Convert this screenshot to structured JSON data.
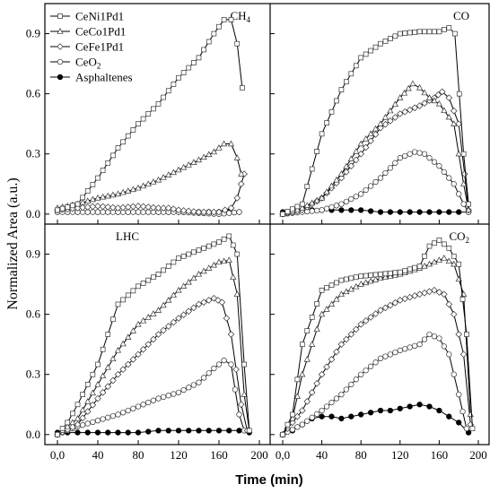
{
  "chart_data": {
    "type": "line",
    "ylabel": "Normalized Area (a.u.)",
    "xlabel": "Time (min)",
    "xlim": [
      0,
      200
    ],
    "ylim": [
      -0.05,
      1.05
    ],
    "xticks": [
      "0,0",
      "40",
      "80",
      "120",
      "160",
      "200"
    ],
    "yticks": [
      "0.0",
      "0.3",
      "0.6",
      "0.9"
    ],
    "legend": {
      "placement": "top-left of top-left panel",
      "entries": [
        {
          "key": "ni",
          "label": "CeNi1Pd1",
          "marker": "square"
        },
        {
          "key": "co",
          "label": "CeCo1Pd1",
          "marker": "triangle"
        },
        {
          "key": "fe",
          "label": "CeFe1Pd1",
          "marker": "diamond"
        },
        {
          "key": "ce",
          "label": "CeO",
          "sub": "2",
          "marker": "circle"
        },
        {
          "key": "asph",
          "label": "Asphaltenes",
          "marker": "filled-circle"
        }
      ]
    },
    "panels": [
      {
        "id": "ch4",
        "label": "CH",
        "label_sub": "4",
        "series": {
          "ni": [
            [
              0,
              0.02
            ],
            [
              20,
              0.05
            ],
            [
              40,
              0.18
            ],
            [
              60,
              0.33
            ],
            [
              80,
              0.45
            ],
            [
              100,
              0.55
            ],
            [
              120,
              0.68
            ],
            [
              140,
              0.78
            ],
            [
              155,
              0.9
            ],
            [
              165,
              0.97
            ],
            [
              172,
              0.97
            ],
            [
              178,
              0.85
            ],
            [
              183,
              0.63
            ]
          ],
          "co": [
            [
              0,
              0.03
            ],
            [
              20,
              0.05
            ],
            [
              40,
              0.08
            ],
            [
              60,
              0.1
            ],
            [
              80,
              0.13
            ],
            [
              100,
              0.17
            ],
            [
              120,
              0.22
            ],
            [
              140,
              0.27
            ],
            [
              155,
              0.31
            ],
            [
              165,
              0.35
            ],
            [
              172,
              0.35
            ],
            [
              178,
              0.28
            ],
            [
              182,
              0.2
            ]
          ],
          "fe": [
            [
              0,
              0.02
            ],
            [
              20,
              0.03
            ],
            [
              40,
              0.04
            ],
            [
              60,
              0.03
            ],
            [
              80,
              0.04
            ],
            [
              100,
              0.03
            ],
            [
              110,
              0.03
            ],
            [
              120,
              0.02
            ],
            [
              140,
              0.01
            ],
            [
              160,
              0.01
            ],
            [
              172,
              0.03
            ],
            [
              178,
              0.08
            ],
            [
              182,
              0.15
            ],
            [
              185,
              0.2
            ]
          ],
          "ce": [
            [
              0,
              0.01
            ],
            [
              40,
              0.01
            ],
            [
              80,
              0.01
            ],
            [
              120,
              0.01
            ],
            [
              160,
              0.0
            ],
            [
              180,
              0.01
            ]
          ],
          "asph": [
            [
              0,
              0.01
            ],
            [
              20,
              0.01
            ],
            [
              40,
              0.01
            ],
            [
              60,
              0.01
            ],
            [
              80,
              0.01
            ],
            [
              100,
              0.01
            ],
            [
              120,
              0.01
            ],
            [
              140,
              0.01
            ],
            [
              160,
              0.01
            ],
            [
              180,
              0.01
            ]
          ]
        }
      },
      {
        "id": "co",
        "label": "CO",
        "label_sub": "",
        "series": {
          "ni": [
            [
              0,
              0.0
            ],
            [
              20,
              0.05
            ],
            [
              40,
              0.4
            ],
            [
              60,
              0.62
            ],
            [
              80,
              0.78
            ],
            [
              100,
              0.85
            ],
            [
              120,
              0.9
            ],
            [
              140,
              0.91
            ],
            [
              160,
              0.91
            ],
            [
              170,
              0.93
            ],
            [
              176,
              0.9
            ],
            [
              185,
              0.3
            ],
            [
              190,
              0.05
            ]
          ],
          "co": [
            [
              0,
              0.0
            ],
            [
              20,
              0.03
            ],
            [
              40,
              0.08
            ],
            [
              60,
              0.2
            ],
            [
              80,
              0.35
            ],
            [
              100,
              0.45
            ],
            [
              120,
              0.58
            ],
            [
              133,
              0.65
            ],
            [
              140,
              0.63
            ],
            [
              150,
              0.58
            ],
            [
              160,
              0.55
            ],
            [
              175,
              0.45
            ],
            [
              185,
              0.15
            ],
            [
              190,
              0.02
            ]
          ],
          "fe": [
            [
              0,
              0.0
            ],
            [
              20,
              0.02
            ],
            [
              40,
              0.08
            ],
            [
              60,
              0.18
            ],
            [
              80,
              0.3
            ],
            [
              100,
              0.43
            ],
            [
              120,
              0.5
            ],
            [
              140,
              0.54
            ],
            [
              155,
              0.58
            ],
            [
              163,
              0.61
            ],
            [
              170,
              0.58
            ],
            [
              180,
              0.45
            ],
            [
              186,
              0.2
            ],
            [
              190,
              0.02
            ]
          ],
          "ce": [
            [
              0,
              0.0
            ],
            [
              40,
              0.02
            ],
            [
              60,
              0.05
            ],
            [
              80,
              0.1
            ],
            [
              100,
              0.18
            ],
            [
              120,
              0.28
            ],
            [
              135,
              0.31
            ],
            [
              145,
              0.3
            ],
            [
              160,
              0.24
            ],
            [
              175,
              0.15
            ],
            [
              185,
              0.05
            ],
            [
              190,
              0.01
            ]
          ],
          "asph": [
            [
              0,
              0.01
            ],
            [
              10,
              0.02
            ],
            [
              20,
              0.02
            ],
            [
              40,
              0.02
            ],
            [
              60,
              0.02
            ],
            [
              80,
              0.02
            ],
            [
              100,
              0.01
            ],
            [
              120,
              0.01
            ],
            [
              140,
              0.01
            ],
            [
              160,
              0.01
            ],
            [
              180,
              0.01
            ],
            [
              190,
              0.01
            ]
          ]
        }
      },
      {
        "id": "lhc",
        "label": "LHC",
        "label_sub": "",
        "series": {
          "ni": [
            [
              0,
              0.0
            ],
            [
              10,
              0.06
            ],
            [
              20,
              0.15
            ],
            [
              40,
              0.35
            ],
            [
              60,
              0.65
            ],
            [
              80,
              0.74
            ],
            [
              100,
              0.8
            ],
            [
              120,
              0.88
            ],
            [
              140,
              0.92
            ],
            [
              160,
              0.96
            ],
            [
              170,
              0.99
            ],
            [
              178,
              0.9
            ],
            [
              185,
              0.35
            ],
            [
              190,
              0.02
            ]
          ],
          "co": [
            [
              0,
              0.0
            ],
            [
              20,
              0.08
            ],
            [
              40,
              0.25
            ],
            [
              60,
              0.42
            ],
            [
              80,
              0.55
            ],
            [
              100,
              0.62
            ],
            [
              120,
              0.72
            ],
            [
              140,
              0.8
            ],
            [
              160,
              0.86
            ],
            [
              170,
              0.87
            ],
            [
              178,
              0.7
            ],
            [
              185,
              0.2
            ],
            [
              190,
              0.02
            ]
          ],
          "fe": [
            [
              0,
              0.0
            ],
            [
              20,
              0.05
            ],
            [
              40,
              0.18
            ],
            [
              60,
              0.3
            ],
            [
              80,
              0.4
            ],
            [
              100,
              0.5
            ],
            [
              120,
              0.58
            ],
            [
              140,
              0.65
            ],
            [
              155,
              0.68
            ],
            [
              163,
              0.66
            ],
            [
              172,
              0.5
            ],
            [
              182,
              0.15
            ],
            [
              188,
              0.02
            ]
          ],
          "ce": [
            [
              0,
              0.0
            ],
            [
              20,
              0.04
            ],
            [
              40,
              0.07
            ],
            [
              60,
              0.1
            ],
            [
              80,
              0.14
            ],
            [
              100,
              0.18
            ],
            [
              120,
              0.21
            ],
            [
              140,
              0.26
            ],
            [
              155,
              0.33
            ],
            [
              165,
              0.37
            ],
            [
              172,
              0.35
            ],
            [
              180,
              0.1
            ],
            [
              185,
              0.02
            ]
          ],
          "asph": [
            [
              0,
              0.01
            ],
            [
              20,
              0.01
            ],
            [
              40,
              0.01
            ],
            [
              60,
              0.01
            ],
            [
              80,
              0.01
            ],
            [
              100,
              0.02
            ],
            [
              120,
              0.02
            ],
            [
              140,
              0.02
            ],
            [
              160,
              0.02
            ],
            [
              180,
              0.02
            ],
            [
              190,
              0.01
            ]
          ]
        }
      },
      {
        "id": "co2",
        "label": "CO",
        "label_sub": "2",
        "series": {
          "ni": [
            [
              0,
              0.0
            ],
            [
              10,
              0.1
            ],
            [
              20,
              0.45
            ],
            [
              40,
              0.72
            ],
            [
              60,
              0.77
            ],
            [
              80,
              0.79
            ],
            [
              100,
              0.8
            ],
            [
              120,
              0.81
            ],
            [
              140,
              0.84
            ],
            [
              150,
              0.94
            ],
            [
              160,
              0.97
            ],
            [
              170,
              0.93
            ],
            [
              180,
              0.85
            ],
            [
              188,
              0.5
            ],
            [
              194,
              0.03
            ]
          ],
          "co": [
            [
              0,
              0.0
            ],
            [
              10,
              0.08
            ],
            [
              20,
              0.3
            ],
            [
              40,
              0.6
            ],
            [
              60,
              0.7
            ],
            [
              80,
              0.75
            ],
            [
              100,
              0.78
            ],
            [
              120,
              0.8
            ],
            [
              140,
              0.83
            ],
            [
              155,
              0.86
            ],
            [
              165,
              0.88
            ],
            [
              175,
              0.85
            ],
            [
              185,
              0.7
            ],
            [
              192,
              0.1
            ]
          ],
          "fe": [
            [
              0,
              0.0
            ],
            [
              20,
              0.12
            ],
            [
              40,
              0.3
            ],
            [
              60,
              0.45
            ],
            [
              80,
              0.55
            ],
            [
              100,
              0.62
            ],
            [
              120,
              0.67
            ],
            [
              140,
              0.7
            ],
            [
              155,
              0.72
            ],
            [
              165,
              0.7
            ],
            [
              175,
              0.6
            ],
            [
              185,
              0.4
            ],
            [
              192,
              0.05
            ]
          ],
          "ce": [
            [
              0,
              0.0
            ],
            [
              20,
              0.05
            ],
            [
              40,
              0.12
            ],
            [
              60,
              0.2
            ],
            [
              80,
              0.3
            ],
            [
              100,
              0.38
            ],
            [
              120,
              0.42
            ],
            [
              140,
              0.45
            ],
            [
              150,
              0.5
            ],
            [
              160,
              0.48
            ],
            [
              170,
              0.4
            ],
            [
              180,
              0.2
            ],
            [
              188,
              0.03
            ]
          ],
          "asph": [
            [
              0,
              0.0
            ],
            [
              10,
              0.02
            ],
            [
              20,
              0.05
            ],
            [
              30,
              0.08
            ],
            [
              40,
              0.09
            ],
            [
              50,
              0.09
            ],
            [
              60,
              0.08
            ],
            [
              70,
              0.09
            ],
            [
              80,
              0.1
            ],
            [
              90,
              0.11
            ],
            [
              100,
              0.12
            ],
            [
              110,
              0.12
            ],
            [
              120,
              0.13
            ],
            [
              130,
              0.14
            ],
            [
              140,
              0.15
            ],
            [
              150,
              0.14
            ],
            [
              160,
              0.12
            ],
            [
              170,
              0.09
            ],
            [
              180,
              0.06
            ],
            [
              190,
              0.01
            ]
          ]
        }
      }
    ]
  }
}
